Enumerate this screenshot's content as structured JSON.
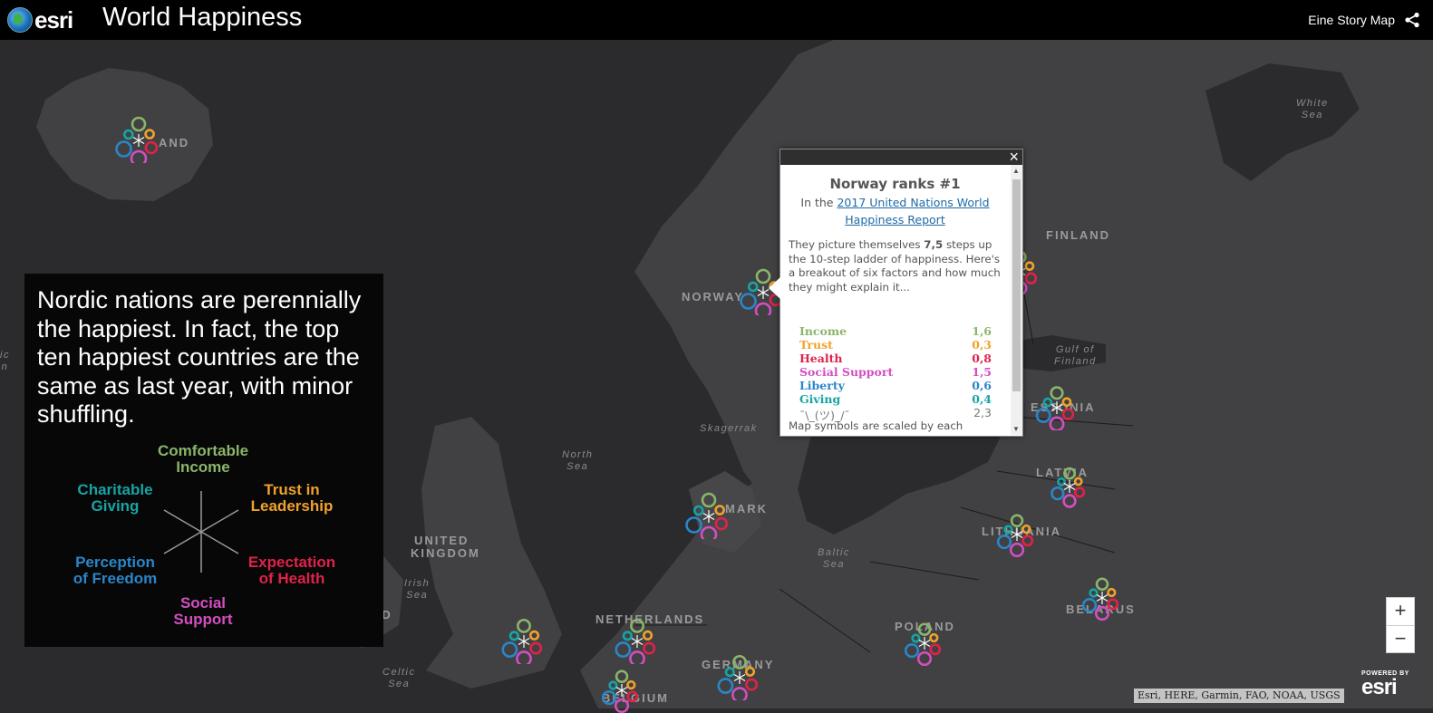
{
  "header": {
    "logo_text": "esri",
    "title": "World Happiness",
    "story_link": "Eine Story Map",
    "share_icon": "share-icon"
  },
  "colors": {
    "income": "#8bb56a",
    "trust": "#f0a22a",
    "health": "#e0224a",
    "social": "#d34ec1",
    "liberty": "#2a86c8",
    "giving": "#16a4a4"
  },
  "map": {
    "country_labels": {
      "iceland": "AND",
      "norway": "NORWAY",
      "finland": "FINLAND",
      "estonia": "ESTONIA",
      "latvia": "LATVIA",
      "lithuania": "LITHUANIA",
      "denmark": "MARK",
      "united_kingdom_1": "UNITED",
      "united_kingdom_2": "KINGDOM",
      "ireland": "ND",
      "netherlands": "NETHERLANDS",
      "poland": "POLAND",
      "germany": "GERMANY",
      "belarus": "BELARUS",
      "belgium": "BELGIUM"
    },
    "sea_labels": {
      "white_sea": "White\nSea",
      "north_sea": "North\nSea",
      "skagerrak": "Skagerrak",
      "baltic_sea": "Baltic\nSea",
      "gulf_of_finland": "Gulf of\nFinland",
      "irish_sea": "Irish\nSea",
      "celtic_sea": "Celtic\nSea",
      "atlantic_edge": "ic\nn"
    }
  },
  "story": {
    "text": "Nordic nations are perennially the happiest. In fact, the top ten happiest countries are the same as last year, with minor shuffling.",
    "legend": {
      "income": "Comfortable\nIncome",
      "trust": "Trust in\nLeadership",
      "health": "Expectation\nof Health",
      "social": "Social\nSupport",
      "liberty": "Perception\nof Freedom",
      "giving": "Charitable\nGiving"
    }
  },
  "popup": {
    "close": "×",
    "title": "Norway ranks #1",
    "sub_prefix": "In the ",
    "sub_link": "2017 United Nations World Happiness Report",
    "desc_prefix": "They picture themselves ",
    "desc_value": "7,5",
    "desc_suffix": " steps up the 10-step ladder of happiness. Here's a breakout of six factors and how much they might explain it...",
    "factors": [
      {
        "name": "Income",
        "value": "1,6",
        "color": "#8bb56a"
      },
      {
        "name": "Trust",
        "value": "0,3",
        "color": "#f0a22a"
      },
      {
        "name": "Health",
        "value": "0,8",
        "color": "#e0224a"
      },
      {
        "name": "Social Support",
        "value": "1,5",
        "color": "#d34ec1"
      },
      {
        "name": "Liberty",
        "value": "0,6",
        "color": "#2a86c8"
      },
      {
        "name": "Giving",
        "value": "0,4",
        "color": "#16a4a4"
      },
      {
        "name": "¯\\_(ツ)_/¯",
        "value": "2,3",
        "color": "#777777"
      }
    ],
    "footer": "Map symbols are scaled by each"
  },
  "zoom": {
    "in": "+",
    "out": "−"
  },
  "attribution": "Esri, HERE, Garmin, FAO, NOAA, USGS",
  "powered_by": {
    "small": "POWERED BY",
    "brand": "esri"
  }
}
